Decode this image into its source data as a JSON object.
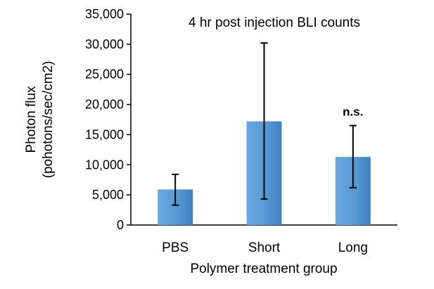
{
  "chart_data": {
    "type": "bar",
    "title": "4 hr post injection BLI counts",
    "xlabel": "Polymer treatment group",
    "ylabel_line1": "Photon flux",
    "ylabel_line2": "(pohotons/sec/cm2)",
    "categories": [
      "PBS",
      "Short",
      "Long"
    ],
    "values": [
      5900,
      17200,
      11300
    ],
    "error_upper": [
      8400,
      30200,
      16500
    ],
    "error_lower": [
      3300,
      4300,
      6200
    ],
    "annotations": [
      "",
      "",
      "n.s."
    ],
    "ylim": [
      0,
      35000
    ],
    "yticks": [
      0,
      5000,
      10000,
      15000,
      20000,
      25000,
      30000,
      35000
    ],
    "ytick_labels": [
      "0",
      "5,000",
      "10,000",
      "15,000",
      "20,000",
      "25,000",
      "30,000",
      "35,000"
    ],
    "grid": false,
    "bar_color": "#5b9bd5",
    "bar_gradient_end": "#3f7fc0"
  }
}
